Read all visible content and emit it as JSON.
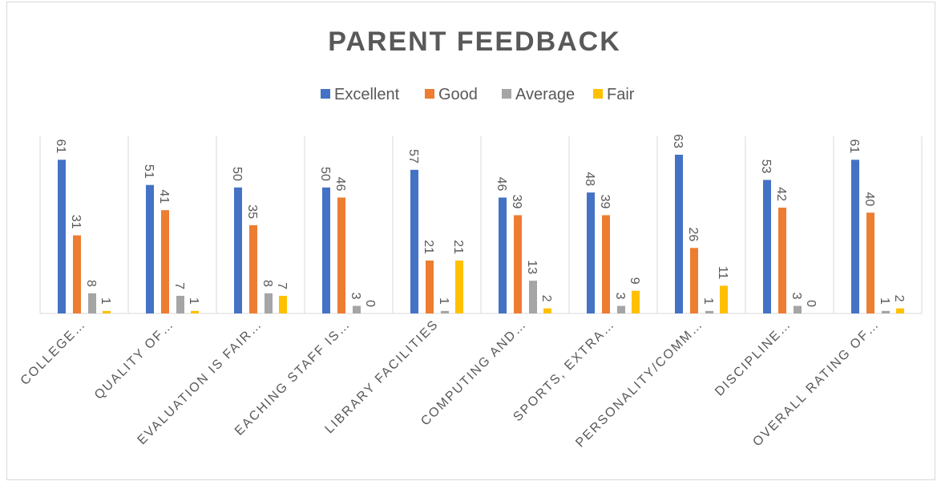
{
  "chart_data": {
    "type": "bar",
    "title": "PARENT FEEDBACK",
    "categories": [
      "COLLEGE…",
      "QUALITY OF…",
      "EVALUATION IS FAIR…",
      "EACHING STAFF IS…",
      "LIBRARY FACILITIES",
      "COMPUTING AND…",
      "SPORTS, EXTRA…",
      "PERSONALITY/COMM…",
      "DISCIPLINE…",
      "OVERALL RATING OF…"
    ],
    "series": [
      {
        "name": "Excellent",
        "color": "#4472c4",
        "values": [
          61,
          51,
          50,
          50,
          57,
          46,
          48,
          63,
          53,
          61
        ]
      },
      {
        "name": "Good",
        "color": "#ed7d31",
        "values": [
          31,
          41,
          35,
          46,
          21,
          39,
          39,
          26,
          42,
          40
        ]
      },
      {
        "name": "Average",
        "color": "#a5a5a5",
        "values": [
          8,
          7,
          8,
          3,
          1,
          13,
          3,
          1,
          3,
          1
        ]
      },
      {
        "name": "Fair",
        "color": "#ffc000",
        "values": [
          1,
          1,
          7,
          0,
          21,
          2,
          9,
          11,
          0,
          2
        ]
      }
    ],
    "legend": "top"
  }
}
